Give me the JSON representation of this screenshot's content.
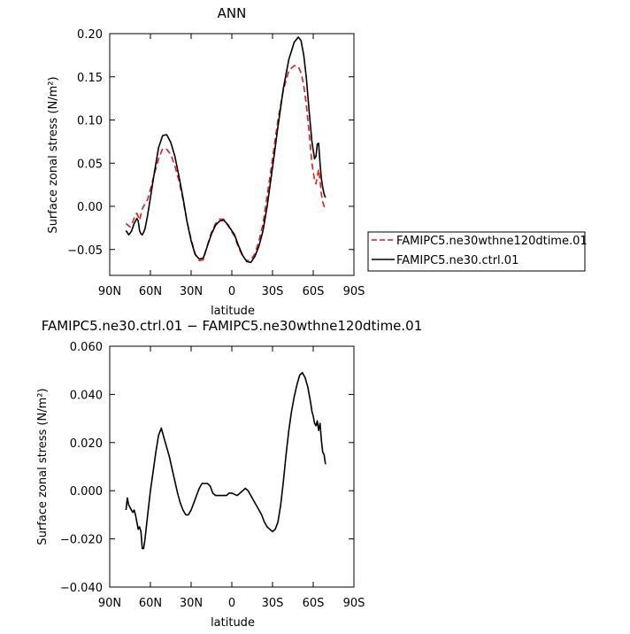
{
  "chart_data": [
    {
      "type": "line",
      "title": "ANN",
      "xlabel": "latitude",
      "ylabel": "Surface zonal stress (N/m²)",
      "xlim": [
        90,
        -90
      ],
      "ylim": [
        -0.08,
        0.2
      ],
      "x_ticks": [
        90,
        60,
        30,
        0,
        -30,
        -60,
        -90
      ],
      "x_tick_labels": [
        "90N",
        "60N",
        "30N",
        "0",
        "30S",
        "60S",
        "90S"
      ],
      "y_ticks": [
        -0.05,
        0.0,
        0.05,
        0.1,
        0.15,
        0.2
      ],
      "y_tick_labels": [
        "−0.05",
        "0.00",
        "0.05",
        "0.10",
        "0.15",
        "0.20"
      ],
      "legend_position": "outside-right",
      "series": [
        {
          "name": "FAMIPC5.ne30wthne120dtime.01",
          "color": "#e41a1c",
          "dash": "dashed",
          "x": [
            78,
            75,
            73,
            71,
            70,
            69,
            68,
            67,
            66,
            65,
            64,
            62,
            60,
            57,
            54,
            51,
            48,
            45,
            42,
            39,
            36,
            33,
            30,
            27,
            24,
            21,
            18,
            15,
            12,
            9,
            6,
            3,
            1,
            -2,
            -5,
            -8,
            -11,
            -14,
            -17,
            -20,
            -23,
            -26,
            -30,
            -34,
            -38,
            -42,
            -46,
            -49,
            -51,
            -53,
            -55,
            -57,
            -59,
            -61,
            -62,
            -63,
            -64,
            -65,
            -66,
            -67,
            -68,
            -69
          ],
          "y": [
            -0.02,
            -0.024,
            -0.018,
            -0.01,
            -0.008,
            -0.012,
            -0.016,
            -0.009,
            -0.003,
            0.0,
            0.003,
            0.008,
            0.02,
            0.038,
            0.055,
            0.067,
            0.066,
            0.06,
            0.047,
            0.03,
            0.008,
            -0.018,
            -0.038,
            -0.055,
            -0.063,
            -0.062,
            -0.045,
            -0.03,
            -0.02,
            -0.015,
            -0.015,
            -0.022,
            -0.027,
            -0.035,
            -0.048,
            -0.058,
            -0.063,
            -0.062,
            -0.055,
            -0.04,
            -0.02,
            0.012,
            0.055,
            0.1,
            0.135,
            0.157,
            0.163,
            0.162,
            0.155,
            0.14,
            0.117,
            0.085,
            0.05,
            0.03,
            0.026,
            0.035,
            0.043,
            0.03,
            0.014,
            0.005,
            0.0,
            -0.002
          ]
        },
        {
          "name": "FAMIPC5.ne30.ctrl.01",
          "color": "#000000",
          "dash": "solid",
          "x": [
            78,
            76,
            74,
            72,
            70,
            69,
            68,
            67,
            66,
            65,
            64,
            62,
            60,
            57,
            54,
            51,
            48,
            45,
            42,
            39,
            36,
            33,
            30,
            27,
            24,
            21,
            18,
            15,
            12,
            9,
            6,
            3,
            1,
            -2,
            -5,
            -8,
            -11,
            -14,
            -17,
            -20,
            -23,
            -26,
            -30,
            -34,
            -38,
            -42,
            -46,
            -49,
            -51,
            -53,
            -55,
            -57,
            -59,
            -61,
            -62,
            -63,
            -64,
            -65,
            -66,
            -67,
            -68,
            -69
          ],
          "y": [
            -0.028,
            -0.033,
            -0.029,
            -0.02,
            -0.014,
            -0.017,
            -0.028,
            -0.032,
            -0.033,
            -0.03,
            -0.026,
            -0.01,
            0.01,
            0.04,
            0.068,
            0.082,
            0.083,
            0.074,
            0.058,
            0.035,
            0.01,
            -0.018,
            -0.04,
            -0.056,
            -0.061,
            -0.06,
            -0.046,
            -0.032,
            -0.022,
            -0.017,
            -0.016,
            -0.021,
            -0.026,
            -0.033,
            -0.046,
            -0.057,
            -0.064,
            -0.065,
            -0.058,
            -0.046,
            -0.028,
            0.0,
            0.045,
            0.092,
            0.137,
            0.17,
            0.19,
            0.196,
            0.192,
            0.175,
            0.148,
            0.11,
            0.075,
            0.055,
            0.058,
            0.072,
            0.073,
            0.05,
            0.032,
            0.022,
            0.014,
            0.01
          ]
        }
      ]
    },
    {
      "type": "line",
      "title": "FAMIPC5.ne30.ctrl.01 − FAMIPC5.ne30wthne120dtime.01",
      "xlabel": "latitude",
      "ylabel": "Surface zonal stress (N/m²)",
      "xlim": [
        90,
        -90
      ],
      "ylim": [
        -0.04,
        0.06
      ],
      "x_ticks": [
        90,
        60,
        30,
        0,
        -30,
        -60,
        -90
      ],
      "x_tick_labels": [
        "90N",
        "60N",
        "30N",
        "0",
        "30S",
        "60S",
        "90S"
      ],
      "y_ticks": [
        -0.04,
        -0.02,
        0.0,
        0.02,
        0.04,
        0.06
      ],
      "y_tick_labels": [
        "−0.040",
        "−0.020",
        "0.000",
        "0.020",
        "0.040",
        "0.060"
      ],
      "series": [
        {
          "color": "#000000",
          "dash": "solid",
          "x": [
            78,
            77,
            76,
            75,
            74,
            73,
            72,
            71,
            70,
            69,
            68,
            67,
            66,
            65,
            64,
            62,
            60,
            58,
            56,
            54,
            52,
            50,
            48,
            46,
            44,
            42,
            40,
            38,
            36,
            34,
            32,
            30,
            28,
            26,
            24,
            22,
            20,
            18,
            16,
            14,
            12,
            10,
            8,
            6,
            4,
            2,
            0,
            -2,
            -4,
            -6,
            -8,
            -10,
            -12,
            -14,
            -16,
            -18,
            -20,
            -22,
            -24,
            -26,
            -28,
            -30,
            -32,
            -34,
            -36,
            -38,
            -40,
            -42,
            -44,
            -46,
            -48,
            -50,
            -52,
            -54,
            -56,
            -58,
            -59,
            -60,
            -61,
            -62,
            -63,
            -64,
            -65,
            -66,
            -67,
            -68,
            -69
          ],
          "y": [
            -0.008,
            -0.003,
            -0.006,
            -0.007,
            -0.008,
            -0.009,
            -0.008,
            -0.01,
            -0.013,
            -0.016,
            -0.015,
            -0.017,
            -0.024,
            -0.024,
            -0.02,
            -0.01,
            0.0,
            0.008,
            0.016,
            0.023,
            0.026,
            0.022,
            0.018,
            0.014,
            0.009,
            0.004,
            -0.001,
            -0.005,
            -0.008,
            -0.01,
            -0.01,
            -0.008,
            -0.005,
            -0.002,
            0.001,
            0.003,
            0.003,
            0.003,
            0.002,
            -0.001,
            -0.002,
            -0.002,
            -0.002,
            -0.002,
            -0.002,
            -0.001,
            -0.001,
            -0.0015,
            -0.002,
            -0.001,
            0.0,
            0.001,
            0.0,
            -0.002,
            -0.004,
            -0.006,
            -0.008,
            -0.01,
            -0.013,
            -0.015,
            -0.016,
            -0.017,
            -0.016,
            -0.013,
            -0.006,
            0.004,
            0.015,
            0.025,
            0.033,
            0.039,
            0.044,
            0.048,
            0.049,
            0.047,
            0.043,
            0.037,
            0.033,
            0.031,
            0.028,
            0.027,
            0.029,
            0.025,
            0.028,
            0.021,
            0.016,
            0.015,
            0.011
          ]
        }
      ]
    }
  ]
}
